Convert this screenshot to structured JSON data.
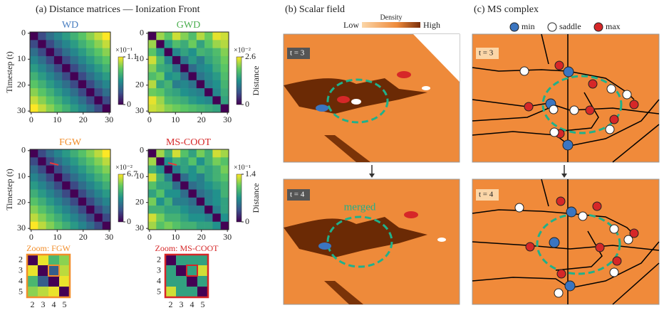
{
  "panel_a": {
    "title": "(a) Distance matrices — Ionization Front",
    "y_label": "Timestep (t)",
    "colorbar_label": "Distance",
    "matrices": [
      {
        "title": "WD",
        "title_color": "#4a7fc1",
        "exponent": "×10⁻¹",
        "clim": [
          0,
          1.1
        ],
        "cticks": [
          0,
          1.1
        ],
        "xlim": [
          -0.5,
          30.5
        ],
        "ylim": [
          -0.5,
          30.5
        ],
        "xticks": [
          0,
          10,
          20,
          30
        ],
        "yticks": [
          0,
          10,
          20,
          30
        ],
        "values": [
          [
            0,
            0.25,
            0.4,
            0.5,
            0.6,
            0.7,
            0.8,
            0.9,
            1.0,
            1.1
          ],
          [
            0.25,
            0,
            0.25,
            0.4,
            0.5,
            0.6,
            0.7,
            0.8,
            0.9,
            1.0
          ],
          [
            0.4,
            0.25,
            0,
            0.25,
            0.4,
            0.5,
            0.6,
            0.7,
            0.8,
            0.9
          ],
          [
            0.5,
            0.4,
            0.25,
            0,
            0.25,
            0.4,
            0.5,
            0.6,
            0.7,
            0.8
          ],
          [
            0.6,
            0.5,
            0.4,
            0.25,
            0,
            0.25,
            0.4,
            0.5,
            0.6,
            0.7
          ],
          [
            0.7,
            0.6,
            0.5,
            0.4,
            0.25,
            0,
            0.25,
            0.4,
            0.5,
            0.6
          ],
          [
            0.8,
            0.7,
            0.6,
            0.5,
            0.4,
            0.25,
            0,
            0.25,
            0.4,
            0.5
          ],
          [
            0.9,
            0.8,
            0.7,
            0.6,
            0.5,
            0.4,
            0.25,
            0,
            0.25,
            0.4
          ],
          [
            1.0,
            0.9,
            0.8,
            0.7,
            0.6,
            0.5,
            0.4,
            0.25,
            0,
            0.25
          ],
          [
            1.1,
            1.0,
            0.9,
            0.8,
            0.7,
            0.6,
            0.5,
            0.4,
            0.25,
            0
          ]
        ]
      },
      {
        "title": "GWD",
        "title_color": "#4caf50",
        "exponent": "×10⁻²",
        "clim": [
          0,
          2.6
        ],
        "cticks": [
          0,
          2.6
        ],
        "xlim": [
          -0.5,
          30.5
        ],
        "ylim": [
          -0.5,
          30.5
        ],
        "xticks": [
          0,
          10,
          20,
          30
        ],
        "yticks": [
          0,
          10,
          20,
          30
        ],
        "values": [
          [
            0,
            2.2,
            1.9,
            2.4,
            2.1,
            1.8,
            2.3,
            2.0,
            2.5,
            2.4
          ],
          [
            2.2,
            0,
            1.4,
            1.8,
            1.6,
            2.0,
            1.5,
            1.9,
            2.2,
            2.3
          ],
          [
            1.9,
            1.4,
            0,
            1.2,
            1.5,
            1.3,
            1.7,
            1.6,
            1.8,
            2.1
          ],
          [
            2.4,
            1.8,
            1.2,
            0,
            1.0,
            1.4,
            1.1,
            1.5,
            1.7,
            2.0
          ],
          [
            2.1,
            1.6,
            1.5,
            1.0,
            0,
            0.9,
            1.2,
            1.3,
            1.6,
            1.9
          ],
          [
            1.8,
            2.0,
            1.3,
            1.4,
            0.9,
            0,
            1.0,
            1.2,
            1.4,
            1.8
          ],
          [
            2.3,
            1.5,
            1.7,
            1.1,
            1.2,
            1.0,
            0,
            1.1,
            1.3,
            1.7
          ],
          [
            2.0,
            1.9,
            1.6,
            1.5,
            1.3,
            1.2,
            1.1,
            0,
            1.2,
            1.6
          ],
          [
            2.5,
            2.2,
            1.8,
            1.7,
            1.6,
            1.4,
            1.3,
            1.2,
            0,
            1.5
          ],
          [
            2.4,
            2.3,
            2.1,
            2.0,
            1.9,
            1.8,
            1.7,
            1.6,
            1.5,
            0
          ]
        ]
      },
      {
        "title": "FGW",
        "title_color": "#f28e2b",
        "exponent": "×10⁻²",
        "clim": [
          0,
          6.7
        ],
        "cticks": [
          0,
          6.7
        ],
        "xlim": [
          -0.5,
          30.5
        ],
        "ylim": [
          -0.5,
          30.5
        ],
        "xticks": [
          0,
          10,
          20,
          30
        ],
        "yticks": [
          0,
          10,
          20,
          30
        ],
        "values": [
          [
            0,
            1.5,
            2.4,
            3,
            3.6,
            4.2,
            4.8,
            5.4,
            6,
            6.7
          ],
          [
            1.5,
            0,
            1.5,
            2.4,
            3,
            3.6,
            4.2,
            4.8,
            5.4,
            6
          ],
          [
            2.4,
            1.5,
            0,
            1.5,
            2.4,
            3,
            3.6,
            4.2,
            4.8,
            5.4
          ],
          [
            3,
            2.4,
            1.5,
            0,
            1.5,
            2.4,
            3,
            3.6,
            4.2,
            4.8
          ],
          [
            3.6,
            3,
            2.4,
            1.5,
            0,
            1.5,
            2.4,
            3,
            3.6,
            4.2
          ],
          [
            4.2,
            3.6,
            3,
            2.4,
            1.5,
            0,
            1.5,
            2.4,
            3,
            3.6
          ],
          [
            4.8,
            4.2,
            3.6,
            3,
            2.4,
            1.5,
            0,
            1.5,
            2.4,
            3
          ],
          [
            5.4,
            4.8,
            4.2,
            3.6,
            3,
            2.4,
            1.5,
            0,
            1.5,
            2.4
          ],
          [
            6,
            5.4,
            4.8,
            4.2,
            3.6,
            3,
            2.4,
            1.5,
            0,
            1.5
          ],
          [
            6.7,
            6,
            5.4,
            4.8,
            4.2,
            3.6,
            3,
            2.4,
            1.5,
            0
          ]
        ]
      },
      {
        "title": "MS-COOT",
        "title_color": "#d62728",
        "exponent": "×10⁻¹",
        "clim": [
          0,
          1.4
        ],
        "cticks": [
          0,
          1.4
        ],
        "xlim": [
          -0.5,
          30.5
        ],
        "ylim": [
          -0.5,
          30.5
        ],
        "xticks": [
          0,
          10,
          20,
          30
        ],
        "yticks": [
          0,
          10,
          20,
          30
        ],
        "values": [
          [
            0,
            1.2,
            0.9,
            1.3,
            1.0,
            0.8,
            1.1,
            0.9,
            1.3,
            1.2
          ],
          [
            1.2,
            0,
            0.7,
            0.9,
            0.8,
            1.0,
            0.7,
            0.9,
            1.1,
            1.0
          ],
          [
            0.9,
            0.7,
            0,
            0.6,
            0.8,
            0.7,
            0.9,
            0.8,
            0.9,
            1.1
          ],
          [
            1.3,
            0.9,
            0.6,
            0,
            0.5,
            0.7,
            0.6,
            0.8,
            0.9,
            1.0
          ],
          [
            1.0,
            0.8,
            0.8,
            0.5,
            0,
            0.5,
            0.6,
            0.7,
            0.8,
            0.9
          ],
          [
            0.8,
            1.0,
            0.7,
            0.7,
            0.5,
            0,
            0.5,
            0.6,
            0.7,
            0.9
          ],
          [
            1.1,
            0.7,
            0.9,
            0.6,
            0.6,
            0.5,
            0,
            0.6,
            0.7,
            0.8
          ],
          [
            0.9,
            0.9,
            0.8,
            0.8,
            0.7,
            0.6,
            0.6,
            0,
            0.6,
            0.8
          ],
          [
            1.3,
            1.1,
            0.9,
            0.9,
            0.8,
            0.7,
            0.7,
            0.6,
            0,
            0.7
          ],
          [
            1.2,
            1.0,
            1.1,
            1.0,
            0.9,
            0.9,
            0.8,
            0.8,
            0.7,
            0
          ]
        ]
      }
    ],
    "zooms": [
      {
        "title": "Zoom: FGW",
        "title_color": "#f28e2b",
        "clim": [
          0,
          6.7
        ],
        "ticks": [
          2,
          3,
          4,
          5
        ],
        "values": [
          [
            0,
            6.5,
            4.5,
            5.5
          ],
          [
            6.5,
            0,
            2.0,
            6.0
          ],
          [
            4.5,
            2.0,
            0,
            6.5
          ],
          [
            5.5,
            6.0,
            6.5,
            0
          ]
        ]
      },
      {
        "title": "Zoom: MS-COOT",
        "title_color": "#d62728",
        "clim": [
          0,
          1.4
        ],
        "ticks": [
          2,
          3,
          4,
          5
        ],
        "values": [
          [
            0,
            0.8,
            0.8,
            0.8
          ],
          [
            0.8,
            0,
            0.8,
            1.3
          ],
          [
            0.8,
            0.8,
            0,
            0.8
          ],
          [
            1.3,
            0.8,
            0.8,
            0
          ]
        ]
      }
    ]
  },
  "panel_b": {
    "title": "(b) Scalar field",
    "colorbar_title": "Density",
    "low": "Low",
    "high": "High",
    "frames": [
      "t = 3",
      "t = 4"
    ],
    "annotation": "merged"
  },
  "panel_c": {
    "title": "(c) MS complex",
    "legend": [
      "min",
      "saddle",
      "max"
    ],
    "frames": [
      "t = 3",
      "t = 4"
    ]
  }
}
